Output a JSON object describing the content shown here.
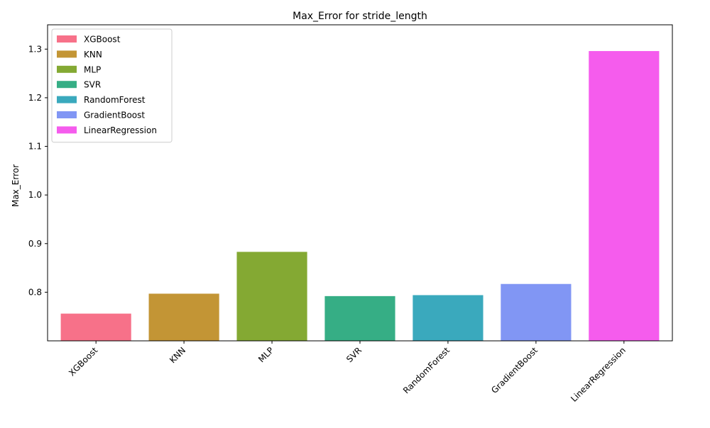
{
  "chart_data": {
    "type": "bar",
    "title": "Max_Error for stride_length",
    "xlabel": "",
    "ylabel": "Max_Error",
    "categories": [
      "XGBoost",
      "KNN",
      "MLP",
      "SVR",
      "RandomForest",
      "GradientBoost",
      "LinearRegression"
    ],
    "values": [
      0.756,
      0.797,
      0.883,
      0.792,
      0.794,
      0.817,
      1.296
    ],
    "colors": [
      "#f77189",
      "#c39535",
      "#84a933",
      "#36ae85",
      "#3aa9bd",
      "#8196f4",
      "#f55ced"
    ],
    "ylim": [
      0.7,
      1.35
    ],
    "yticks": [
      0.8,
      0.9,
      1.0,
      1.1,
      1.2,
      1.3
    ],
    "ytick_labels": [
      "0.8",
      "0.9",
      "1.0",
      "1.1",
      "1.2",
      "1.3"
    ],
    "grid": false,
    "legend": {
      "placement": "upper-left",
      "entries": [
        "XGBoost",
        "KNN",
        "MLP",
        "SVR",
        "RandomForest",
        "GradientBoost",
        "LinearRegression"
      ]
    }
  }
}
